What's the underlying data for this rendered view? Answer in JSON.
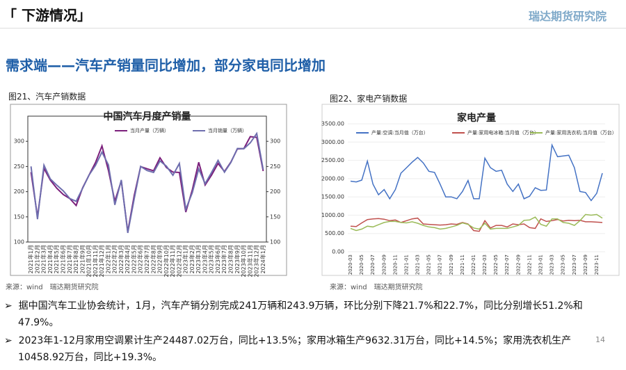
{
  "header": {
    "title": "「 下游情况」",
    "logo": "瑞达期货研究院",
    "subtitle": "需求端——汽车产销量同比增加，部分家电同比增加"
  },
  "captions": [
    "图21、汽车产销数据",
    "图22、家电产销数据"
  ],
  "sources": [
    "来源：wind　瑞达期货研究院",
    "来源：wind　瑞达期货研究院"
  ],
  "bullets": [
    "据中国汽车工业协会统计，1月，汽车产销分别完成241万辆和243.9万辆，环比分别下降21.7%和22.7%，同比分别增长51.2%和47.9%。",
    "2023年1-12月家用空调累计生产24487.02万台，同比+13.5%；家用冰箱生产9632.31万台，同比+14.5%；家用洗衣机生产10458.92万台，同比+19.3%。"
  ],
  "page_number": "14",
  "chart_data": [
    {
      "type": "line",
      "title": "中国汽车月度产销量",
      "categories": [
        "2021年1月",
        "2021年2月",
        "2021年3月",
        "2021年4月",
        "2021年5月",
        "2021年6月",
        "2021年7月",
        "2021年8月",
        "2021年9月",
        "2021年10月",
        "2021年11月",
        "2021年12月",
        "2022年1月",
        "2022年2月",
        "2022年3月",
        "2022年4月",
        "2022年5月",
        "2022年6月",
        "2022年7月",
        "2022年8月",
        "2022年9月",
        "2022年10月",
        "2022年11月",
        "2022年12月",
        "2023年1月",
        "2023年2月",
        "2023年3月",
        "2023年4月",
        "2023年5月",
        "2023年6月",
        "2023年7月",
        "2023年8月",
        "2023年9月",
        "2023年10月",
        "2023年11月",
        "2023年12月",
        "2024年1月"
      ],
      "series": [
        {
          "name": "当月产量（万辆）",
          "color": "#7b1f7b",
          "values": [
            238.8,
            150.3,
            246.4,
            222.8,
            206.7,
            194.3,
            186.3,
            172.5,
            207.7,
            233.1,
            257.9,
            290.7,
            242.1,
            181.2,
            221.5,
            120.5,
            192.6,
            249.9,
            245.5,
            241.5,
            267.2,
            247.9,
            238.9,
            238.3,
            159.4,
            203.2,
            258.4,
            213.3,
            233.0,
            256.1,
            240.1,
            258.9,
            285.0,
            285.6,
            309.3,
            307.9,
            241.0
          ]
        },
        {
          "name": "当月销量（万辆）",
          "color": "#6e6eae",
          "values": [
            250.3,
            145.5,
            252.6,
            225.2,
            212.8,
            201.5,
            186.4,
            180.9,
            206.7,
            233.2,
            252.2,
            278.6,
            253.1,
            173.7,
            223.4,
            118.1,
            186.2,
            250.2,
            242.0,
            238.3,
            261.0,
            250.5,
            232.6,
            256.1,
            164.9,
            197.6,
            245.1,
            215.9,
            238.2,
            262.2,
            238.7,
            258.2,
            285.8,
            285.3,
            297.0,
            315.6,
            243.9
          ]
        }
      ],
      "ylim": [
        100,
        350
      ],
      "yticks": [
        100,
        150,
        200,
        250,
        300
      ],
      "y2lim": [
        100,
        350
      ],
      "y2ticks": [
        100,
        150,
        200,
        250,
        300
      ],
      "legend": "top"
    },
    {
      "type": "line",
      "title": "家电产量",
      "categories": [
        "2020-03",
        null,
        "2020-05",
        null,
        "2020-07",
        null,
        "2020-09",
        null,
        "2020-11",
        null,
        "2021-01",
        null,
        "2021-03",
        null,
        "2021-05",
        null,
        "2021-07",
        null,
        "2021-09",
        null,
        "2021-11",
        null,
        "2022-01",
        null,
        "2022-03",
        null,
        "2022-05",
        null,
        "2022-07",
        null,
        "2022-09",
        null,
        "2022-11",
        null,
        "2023-01",
        null,
        "2023-03",
        null,
        "2023-05",
        null,
        "2023-07",
        null,
        "2023-09",
        null,
        "2023-11",
        null
      ],
      "series": [
        {
          "name": "产量:空调:当月值（万台）",
          "color": "#4472c4",
          "values": [
            1930,
            1910,
            1960,
            2480,
            1850,
            1560,
            1700,
            1450,
            1700,
            2150,
            2300,
            2450,
            2580,
            2430,
            2200,
            2170,
            1850,
            1500,
            1500,
            1450,
            1650,
            1950,
            1450,
            1450,
            2560,
            2300,
            2200,
            2230,
            1850,
            1650,
            1850,
            1450,
            1520,
            1750,
            1680,
            1690,
            2920,
            2600,
            2620,
            2640,
            2300,
            1650,
            1620,
            1400,
            1600,
            2150
          ]
        },
        {
          "name": "产量:家用电冰箱:当月值（万台）",
          "color": "#c0504d",
          "values": [
            700,
            690,
            790,
            880,
            900,
            910,
            890,
            850,
            870,
            800,
            850,
            900,
            920,
            760,
            750,
            740,
            730,
            740,
            760,
            750,
            800,
            760,
            580,
            560,
            850,
            650,
            720,
            720,
            680,
            760,
            740,
            760,
            660,
            640,
            900,
            830,
            850,
            880,
            840,
            860,
            850,
            860,
            820,
            820,
            810,
            800
          ]
        },
        {
          "name": "产量:家用洗衣机:当月值（万台）",
          "color": "#9bbb59",
          "values": [
            640,
            580,
            620,
            700,
            680,
            740,
            800,
            830,
            830,
            800,
            790,
            820,
            780,
            720,
            680,
            660,
            620,
            640,
            680,
            720,
            790,
            750,
            650,
            620,
            780,
            620,
            640,
            640,
            640,
            680,
            720,
            860,
            870,
            950,
            750,
            700,
            900,
            900,
            800,
            780,
            720,
            850,
            1020,
            1000,
            1020,
            920
          ]
        }
      ],
      "ylim": [
        0,
        3500
      ],
      "yticks": [
        {
          "value": 0,
          "label": "0.00"
        },
        {
          "value": 500,
          "label": "500.00"
        },
        {
          "value": 1000,
          "label": "1000.00"
        },
        {
          "value": 1500,
          "label": "1500.00"
        },
        {
          "value": 2000,
          "label": "2000.00"
        },
        {
          "value": 2500,
          "label": "2500.00"
        },
        {
          "value": 3000,
          "label": "3000.00"
        },
        {
          "value": 3500,
          "label": "3500.00"
        }
      ],
      "legend": "top"
    }
  ]
}
